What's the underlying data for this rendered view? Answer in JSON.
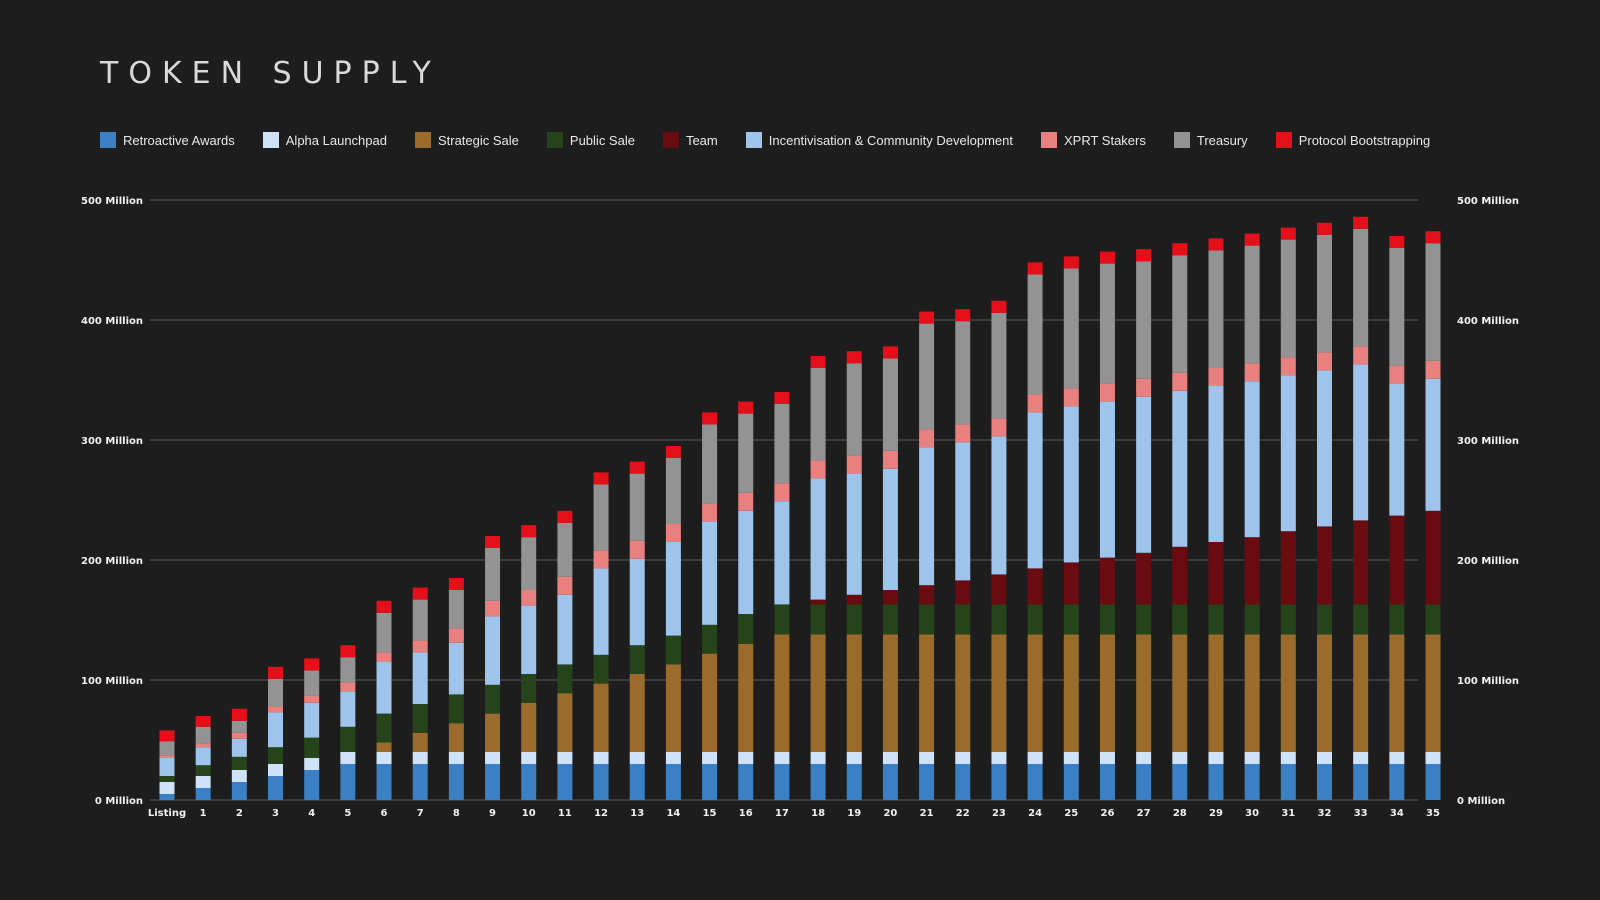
{
  "chart_data": {
    "type": "bar",
    "stacked": true,
    "title": "TOKEN SUPPLY",
    "xlabel": "",
    "ylabel": "",
    "ylim": [
      0,
      500
    ],
    "y_ticks": [
      {
        "value": 0,
        "label": "0 Million"
      },
      {
        "value": 100,
        "label": "100 Million"
      },
      {
        "value": 200,
        "label": "200 Million"
      },
      {
        "value": 300,
        "label": "300 Million"
      },
      {
        "value": 400,
        "label": "400 Million"
      },
      {
        "value": 500,
        "label": "500 Million"
      }
    ],
    "grid": true,
    "legend_position": "top",
    "categories": [
      "Listing",
      "1",
      "2",
      "3",
      "4",
      "5",
      "6",
      "7",
      "8",
      "9",
      "10",
      "11",
      "12",
      "13",
      "14",
      "15",
      "16",
      "17",
      "18",
      "19",
      "20",
      "21",
      "22",
      "23",
      "24",
      "25",
      "26",
      "27",
      "28",
      "29",
      "30",
      "31",
      "32",
      "33",
      "34",
      "35"
    ],
    "series": [
      {
        "name": "Retroactive Awards",
        "color": "#3b7fc4",
        "values": [
          5,
          10,
          15,
          20,
          25,
          30,
          30,
          30,
          30,
          30,
          30,
          30,
          30,
          30,
          30,
          30,
          30,
          30,
          30,
          30,
          30,
          30,
          30,
          30,
          30,
          30,
          30,
          30,
          30,
          30,
          30,
          30,
          30,
          30,
          30,
          30
        ]
      },
      {
        "name": "Alpha Launchpad",
        "color": "#cfe2f7",
        "values": [
          10,
          10,
          10,
          10,
          10,
          10,
          10,
          10,
          10,
          10,
          10,
          10,
          10,
          10,
          10,
          10,
          10,
          10,
          10,
          10,
          10,
          10,
          10,
          10,
          10,
          10,
          10,
          10,
          10,
          10,
          10,
          10,
          10,
          10,
          10,
          10
        ]
      },
      {
        "name": "Strategic Sale",
        "color": "#9b6b2c",
        "values": [
          0,
          0,
          0,
          0,
          0,
          0,
          8,
          16,
          24,
          32,
          41,
          49,
          57,
          65,
          73,
          82,
          90,
          98,
          98,
          98,
          98,
          98,
          98,
          98,
          98,
          98,
          98,
          98,
          98,
          98,
          98,
          98,
          98,
          98,
          98,
          98
        ]
      },
      {
        "name": "Public Sale",
        "color": "#25441a",
        "values": [
          5,
          9,
          11,
          14,
          17,
          21,
          24,
          24,
          24,
          24,
          24,
          24,
          24,
          24,
          24,
          24,
          25,
          25,
          25,
          25,
          25,
          25,
          25,
          25,
          25,
          25,
          25,
          25,
          25,
          25,
          25,
          25,
          25,
          25,
          25,
          25
        ]
      },
      {
        "name": "Team",
        "color": "#6a0b12",
        "values": [
          0,
          0,
          0,
          0,
          0,
          0,
          0,
          0,
          0,
          0,
          0,
          0,
          0,
          0,
          0,
          0,
          0,
          0,
          4,
          8,
          12,
          16,
          20,
          25,
          30,
          35,
          39,
          43,
          48,
          52,
          56,
          61,
          65,
          70,
          74,
          78
        ]
      },
      {
        "name": "Incentivisation & Community Development",
        "color": "#9fc4ec",
        "values": [
          15,
          15,
          15,
          29,
          29,
          29,
          43,
          43,
          43,
          57,
          57,
          58,
          72,
          72,
          78,
          86,
          86,
          86,
          101,
          101,
          101,
          115,
          115,
          115,
          130,
          130,
          130,
          130,
          130,
          130,
          130,
          130,
          130,
          130,
          110,
          110
        ]
      },
      {
        "name": "XPRT Stakers",
        "color": "#e98080",
        "values": [
          2,
          3,
          5,
          5,
          6,
          8,
          8,
          10,
          12,
          13,
          13,
          15,
          15,
          15,
          15,
          15,
          15,
          15,
          15,
          15,
          15,
          15,
          15,
          15,
          15,
          15,
          15,
          15,
          15,
          15,
          15,
          15,
          15,
          15,
          15,
          15
        ]
      },
      {
        "name": "Treasury",
        "color": "#939393",
        "values": [
          12,
          14,
          10,
          23,
          21,
          21,
          33,
          34,
          32,
          44,
          44,
          45,
          55,
          56,
          55,
          66,
          66,
          66,
          77,
          77,
          77,
          88,
          86,
          88,
          100,
          100,
          100,
          98,
          98,
          98,
          98,
          98,
          98,
          98,
          98,
          98
        ]
      },
      {
        "name": "Protocol Bootstrapping",
        "color": "#e40f18",
        "values": [
          9,
          9,
          10,
          10,
          10,
          10,
          10,
          10,
          10,
          10,
          10,
          10,
          10,
          10,
          10,
          10,
          10,
          10,
          10,
          10,
          10,
          10,
          10,
          10,
          10,
          10,
          10,
          10,
          10,
          10,
          10,
          10,
          10,
          10,
          10,
          10
        ]
      }
    ]
  }
}
